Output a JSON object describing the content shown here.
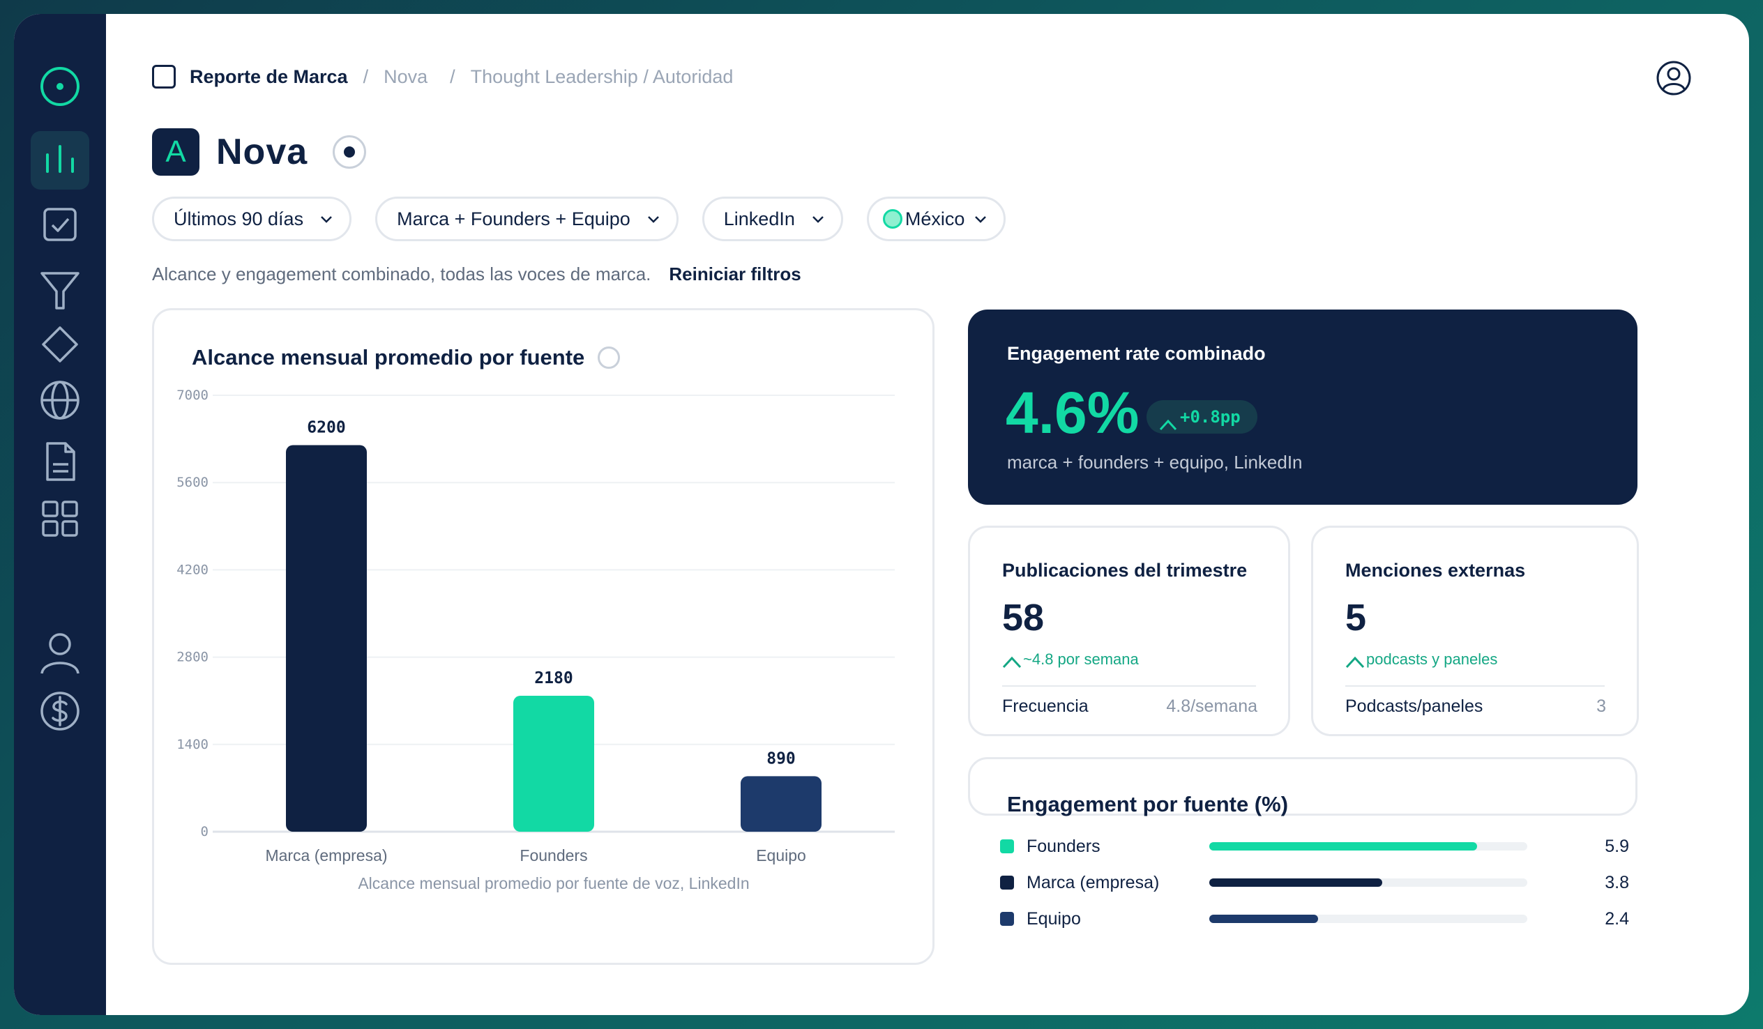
{
  "breadcrumb": {
    "root": "Reporte de Marca",
    "items": [
      "Nova",
      "Thought Leadership / Autoridad"
    ]
  },
  "brand": {
    "badge_letter": "A",
    "title": "Nova"
  },
  "filters": {
    "period": "Últimos 90 días",
    "sources": "Marca + Founders + Equipo",
    "network": "LinkedIn",
    "country": "México"
  },
  "subline": {
    "text": "Alcance y engagement combinado, todas las voces de marca.",
    "reset": "Reiniciar filtros"
  },
  "chart_data": {
    "type": "bar",
    "title": "Alcance mensual promedio por fuente",
    "caption": "Alcance mensual promedio por fuente de voz, LinkedIn",
    "categories": [
      "Marca (empresa)",
      "Founders",
      "Equipo"
    ],
    "values": [
      6200,
      2180,
      890
    ],
    "colors": [
      "#0f2142",
      "#12d9a4",
      "#1d3a6b"
    ],
    "yticks": [
      0,
      1400,
      2800,
      4200,
      5600,
      7000
    ],
    "ylim": [
      0,
      7000
    ],
    "grid": true,
    "xlabel": "",
    "ylabel": ""
  },
  "engagement": {
    "label": "Engagement rate combinado",
    "value": "4.6%",
    "delta": "+0.8pp",
    "sub": "marca + founders + equipo, LinkedIn"
  },
  "stats": [
    {
      "label": "Publicaciones del trimestre",
      "value": "58",
      "trend": "~4.8 por semana",
      "row_label": "Frecuencia",
      "row_value": "4.8/semana"
    },
    {
      "label": "Menciones externas",
      "value": "5",
      "trend": "podcasts y paneles",
      "row_label": "Podcasts/paneles",
      "row_value": "3"
    }
  ],
  "engagement_by_source": {
    "title": "Engagement por fuente (%)",
    "max": 7,
    "items": [
      {
        "name": "Founders",
        "value": 5.9,
        "display": "5.9",
        "color": "#12d9a4"
      },
      {
        "name": "Marca (empresa)",
        "value": 3.8,
        "display": "3.8",
        "color": "#0f2142"
      },
      {
        "name": "Equipo",
        "value": 2.4,
        "display": "2.4",
        "color": "#1d3a6b"
      }
    ]
  },
  "colors": {
    "navy": "#0f2142",
    "accent": "#12d9a4",
    "muted": "#9aa5b5"
  },
  "icons": [
    "target-icon",
    "bar-chart-icon",
    "checkbox-icon",
    "funnel-icon",
    "diamond-icon",
    "globe-icon",
    "document-icon",
    "grid-icon",
    "person-icon",
    "dollar-icon",
    "user-circle-icon"
  ]
}
